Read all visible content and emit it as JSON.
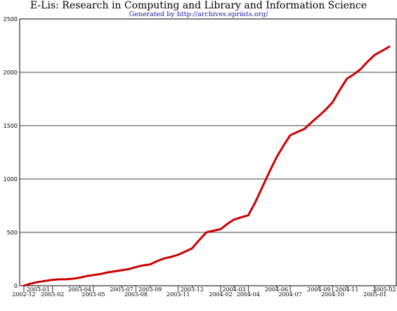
{
  "chart_data": {
    "type": "line",
    "title": "E-Lis: Research in Computing and Library and Information Science",
    "subtitle": "Generated by http://archives.eprints.org/",
    "xlabel": "",
    "ylabel": "",
    "ylim": [
      0,
      2500
    ],
    "yticks": [
      0,
      500,
      1000,
      1500,
      2000,
      2500
    ],
    "grid": true,
    "line_color": "#cc0000",
    "x_ticks": [
      "2002-12",
      "2003-01",
      "2003-02",
      "2003-04",
      "2003-05",
      "2003-07",
      "2003-08",
      "2003-09",
      "2003-11",
      "2003-12",
      "2004-02",
      "2004-03",
      "2004-04",
      "2004-06",
      "2004-07",
      "2004-09",
      "2004-10",
      "2004-11",
      "2005-01",
      "2005-02"
    ],
    "series": [
      {
        "x": [
          "2002-12-01",
          "2002-12-16",
          "2003-01-01",
          "2003-01-16",
          "2003-02-01",
          "2003-02-16",
          "2003-03-01",
          "2003-03-16",
          "2003-04-01",
          "2003-04-16",
          "2003-05-01",
          "2003-05-16",
          "2003-06-01",
          "2003-06-16",
          "2003-07-01",
          "2003-07-16",
          "2003-08-01",
          "2003-08-16",
          "2003-09-01",
          "2003-09-16",
          "2003-10-01",
          "2003-10-16",
          "2003-11-01",
          "2003-11-16",
          "2003-12-01",
          "2003-12-16",
          "2004-01-01",
          "2004-01-16",
          "2004-02-01",
          "2004-02-16",
          "2004-03-01",
          "2004-03-16",
          "2004-04-01",
          "2004-04-16",
          "2004-05-01",
          "2004-05-16",
          "2004-06-01",
          "2004-06-16",
          "2004-07-01",
          "2004-07-16",
          "2004-08-01",
          "2004-08-16",
          "2004-09-01",
          "2004-09-16",
          "2004-10-01",
          "2004-10-16",
          "2004-11-01",
          "2004-11-16",
          "2004-12-01",
          "2004-12-16",
          "2005-01-01",
          "2005-01-16",
          "2005-02-01"
        ],
        "y": [
          0,
          20,
          35,
          45,
          55,
          60,
          60,
          65,
          75,
          90,
          100,
          110,
          125,
          135,
          145,
          155,
          175,
          190,
          200,
          230,
          255,
          270,
          290,
          320,
          350,
          425,
          500,
          515,
          530,
          580,
          620,
          640,
          660,
          780,
          920,
          1060,
          1200,
          1310,
          1410,
          1440,
          1470,
          1530,
          1590,
          1650,
          1720,
          1830,
          1940,
          1980,
          2030,
          2100,
          2165,
          2200,
          2240
        ]
      }
    ]
  }
}
